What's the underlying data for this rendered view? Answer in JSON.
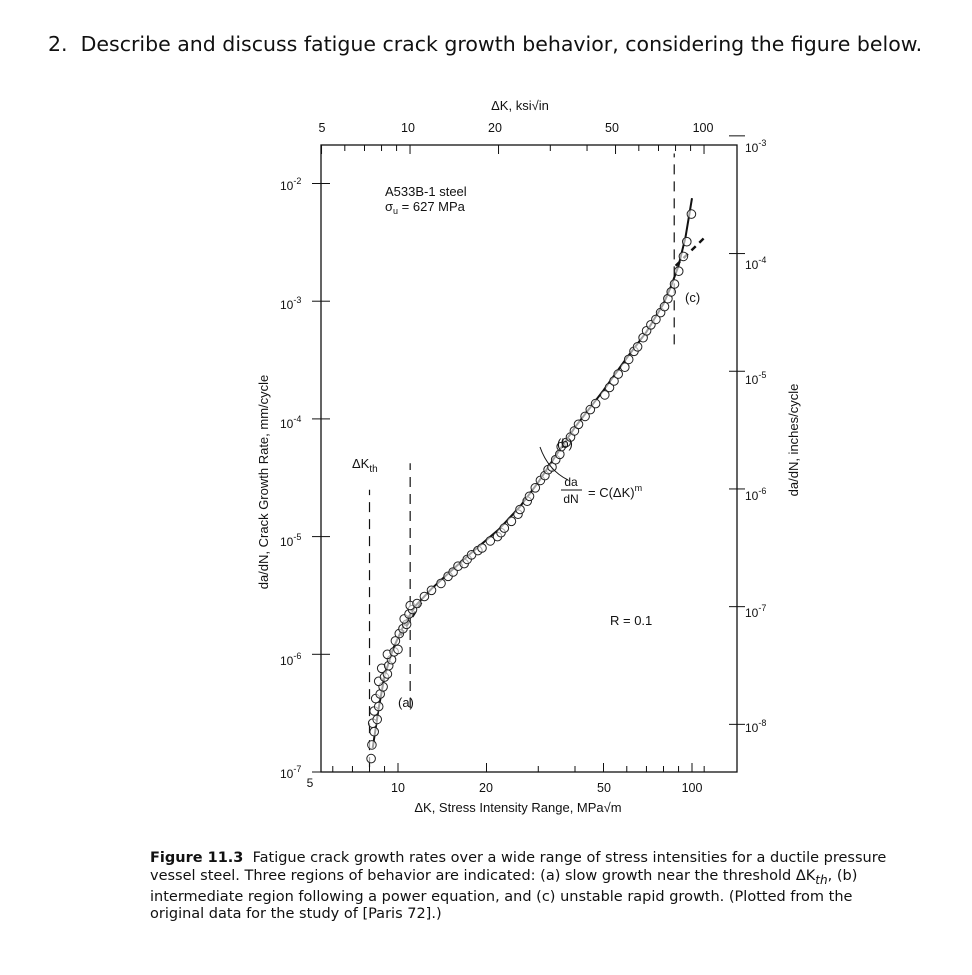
{
  "question": {
    "number": "2.",
    "text": "Describe and discuss fatigue crack growth behavior, considering the figure below."
  },
  "chart_data": {
    "type": "scatter",
    "title": "",
    "x_scale": "log",
    "y_scale": "log",
    "xlim": [
      5,
      120
    ],
    "ylim": [
      1e-07,
      0.02
    ],
    "xlabel": "ΔK, Stress Intensity Range, MPa√m",
    "x2label": "ΔK, ksi√in",
    "ylabel": "da/dN, Crack Growth Rate, mm/cycle",
    "y2label": "da/dN, inches/cycle",
    "x_ticks": [
      "5",
      "10",
      "20",
      "50",
      "100"
    ],
    "x2_ticks": [
      "5",
      "10",
      "20",
      "50",
      "100"
    ],
    "y_ticks": [
      {
        "value": 1e-07,
        "base": "10",
        "exp": "-7"
      },
      {
        "value": 1e-06,
        "base": "10",
        "exp": "-6"
      },
      {
        "value": 1e-05,
        "base": "10",
        "exp": "-5"
      },
      {
        "value": 0.0001,
        "base": "10",
        "exp": "-4"
      },
      {
        "value": 0.001,
        "base": "10",
        "exp": "-3"
      },
      {
        "value": 0.01,
        "base": "10",
        "exp": "-2"
      }
    ],
    "y2_ticks": [
      {
        "base": "10",
        "exp": "-3"
      },
      {
        "base": "10",
        "exp": "-4"
      },
      {
        "base": "10",
        "exp": "-5"
      },
      {
        "base": "10",
        "exp": "-6"
      },
      {
        "base": "10",
        "exp": "-7"
      },
      {
        "base": "10",
        "exp": "-8"
      }
    ],
    "material": {
      "line1": "A533B-1 steel",
      "line2_symbol": "σ",
      "line2_sub": "u",
      "line2_rest": " = 627 MPa"
    },
    "threshold_label": {
      "main": "ΔK",
      "sub": "th"
    },
    "region_labels": [
      "(a)",
      "(b)",
      "(c)"
    ],
    "equation": {
      "numerator": "da",
      "denominator": "dN",
      "rhs": "= C(ΔK)",
      "exponent": "m"
    },
    "r_ratio": "R = 0.1",
    "x_vlines": [
      8.0,
      11.0,
      87
    ],
    "fit_curve": [
      [
        8.2,
        1.6e-07
      ],
      [
        8.6,
        3.5e-07
      ],
      [
        9.0,
        6.5e-07
      ],
      [
        9.6,
        1.1e-06
      ],
      [
        10.5,
        1.8e-06
      ],
      [
        11.5,
        2.6e-06
      ],
      [
        13,
        3.6e-06
      ],
      [
        15,
        5e-06
      ],
      [
        18,
        7.5e-06
      ],
      [
        22,
        1.15e-05
      ],
      [
        26,
        1.8e-05
      ],
      [
        30,
        2.9e-05
      ],
      [
        35,
        5.2e-05
      ],
      [
        40,
        8.5e-05
      ],
      [
        50,
        0.000175
      ],
      [
        60,
        0.00033
      ],
      [
        70,
        0.00055
      ],
      [
        80,
        0.00095
      ],
      [
        85,
        0.00135
      ],
      [
        90,
        0.002
      ],
      [
        95,
        0.0035
      ],
      [
        100,
        0.0075
      ]
    ],
    "extrapolation_lines": [
      [
        [
          10.2,
          1.45e-06
        ],
        [
          12.0,
          2.75e-06
        ]
      ],
      [
        [
          88,
          0.002
        ],
        [
          112,
          0.0036
        ]
      ]
    ],
    "points": [
      [
        8.1,
        1.3e-07
      ],
      [
        8.15,
        1.7e-07
      ],
      [
        8.3,
        2.2e-07
      ],
      [
        8.2,
        2.6e-07
      ],
      [
        8.5,
        2.8e-07
      ],
      [
        8.3,
        3.3e-07
      ],
      [
        8.6,
        3.6e-07
      ],
      [
        8.4,
        4.2e-07
      ],
      [
        8.7,
        4.6e-07
      ],
      [
        8.9,
        5.3e-07
      ],
      [
        8.6,
        5.9e-07
      ],
      [
        9.0,
        6.4e-07
      ],
      [
        9.2,
        6.8e-07
      ],
      [
        8.8,
        7.6e-07
      ],
      [
        9.3,
        8e-07
      ],
      [
        9.5,
        9e-07
      ],
      [
        9.2,
        1e-06
      ],
      [
        9.7,
        1.05e-06
      ],
      [
        10.0,
        1.1e-06
      ],
      [
        9.8,
        1.3e-06
      ],
      [
        10.1,
        1.5e-06
      ],
      [
        10.4,
        1.65e-06
      ],
      [
        10.7,
        1.8e-06
      ],
      [
        10.5,
        2e-06
      ],
      [
        10.9,
        2.2e-06
      ],
      [
        11.2,
        2.4e-06
      ],
      [
        11.0,
        2.6e-06
      ],
      [
        11.6,
        2.7e-06
      ],
      [
        12.3,
        3.1e-06
      ],
      [
        13.0,
        3.5e-06
      ],
      [
        14.0,
        4e-06
      ],
      [
        14.8,
        4.6e-06
      ],
      [
        15.4,
        5e-06
      ],
      [
        16.0,
        5.6e-06
      ],
      [
        16.8,
        5.9e-06
      ],
      [
        17.2,
        6.4e-06
      ],
      [
        17.8,
        7e-06
      ],
      [
        18.7,
        7.6e-06
      ],
      [
        19.3,
        8e-06
      ],
      [
        20.6,
        9.2e-06
      ],
      [
        21.8,
        1e-05
      ],
      [
        22.4,
        1.08e-05
      ],
      [
        23.0,
        1.18e-05
      ],
      [
        24.3,
        1.35e-05
      ],
      [
        25.6,
        1.55e-05
      ],
      [
        26.0,
        1.7e-05
      ],
      [
        27.5,
        2e-05
      ],
      [
        28.0,
        2.2e-05
      ],
      [
        29.3,
        2.6e-05
      ],
      [
        30.5,
        3e-05
      ],
      [
        31.6,
        3.3e-05
      ],
      [
        32.4,
        3.7e-05
      ],
      [
        33.4,
        3.9e-05
      ],
      [
        34.4,
        4.5e-05
      ],
      [
        35.5,
        5e-05
      ],
      [
        35.9,
        5.8e-05
      ],
      [
        37.3,
        6.3e-05
      ],
      [
        38.6,
        7e-05
      ],
      [
        39.8,
        7.9e-05
      ],
      [
        41.1,
        9e-05
      ],
      [
        43.3,
        0.000105
      ],
      [
        45.1,
        0.00012
      ],
      [
        47.0,
        0.000135
      ],
      [
        50.5,
        0.00016
      ],
      [
        52.4,
        0.000185
      ],
      [
        54.3,
        0.00021
      ],
      [
        56.1,
        0.00024
      ],
      [
        59.1,
        0.000275
      ],
      [
        60.9,
        0.00032
      ],
      [
        63.5,
        0.000375
      ],
      [
        65.3,
        0.00041
      ],
      [
        68.2,
        0.00049
      ],
      [
        70.1,
        0.00056
      ],
      [
        72.5,
        0.00063
      ],
      [
        75.4,
        0.0007
      ],
      [
        78.2,
        0.0008
      ],
      [
        80.6,
        0.0009
      ],
      [
        82.8,
        0.00105
      ],
      [
        85.0,
        0.0012
      ],
      [
        87.2,
        0.0014
      ],
      [
        90.1,
        0.0018
      ],
      [
        93.5,
        0.0024
      ],
      [
        96.0,
        0.0032
      ],
      [
        99.5,
        0.0055
      ]
    ]
  },
  "caption": {
    "label": "Figure 11.3",
    "text": "Fatigue crack growth rates over a wide range of stress intensities for a ductile pressure vessel steel. Three regions of behavior are indicated: (a) slow growth near the threshold ΔK",
    "sub": "th",
    "text2": ", (b) intermediate region following a power equation, and (c) unstable rapid growth. (Plotted from the original data for the study of [Paris 72].)"
  }
}
